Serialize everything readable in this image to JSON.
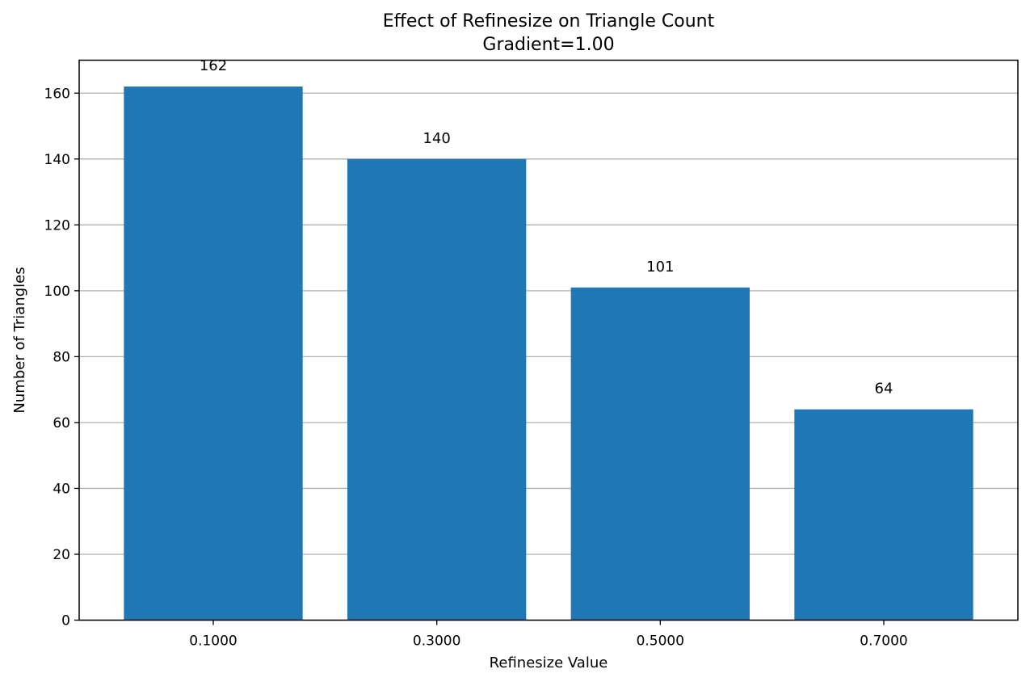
{
  "chart_data": {
    "type": "bar",
    "title": "Effect of Refinesize on Triangle Count",
    "subtitle": "Gradient=1.00",
    "xlabel": "Refinesize Value",
    "ylabel": "Number of Triangles",
    "categories": [
      "0.1000",
      "0.3000",
      "0.5000",
      "0.7000"
    ],
    "values": [
      162,
      140,
      101,
      64
    ],
    "data_labels": [
      "162",
      "140",
      "101",
      "64"
    ],
    "ylim": [
      0,
      170
    ],
    "yticks": [
      0,
      20,
      40,
      60,
      80,
      100,
      120,
      140,
      160
    ],
    "ytick_labels": [
      "0",
      "20",
      "40",
      "60",
      "80",
      "100",
      "120",
      "140",
      "160"
    ],
    "grid": "y",
    "bar_color": "#1f77b4",
    "grid_color": "#b0b0b0"
  }
}
